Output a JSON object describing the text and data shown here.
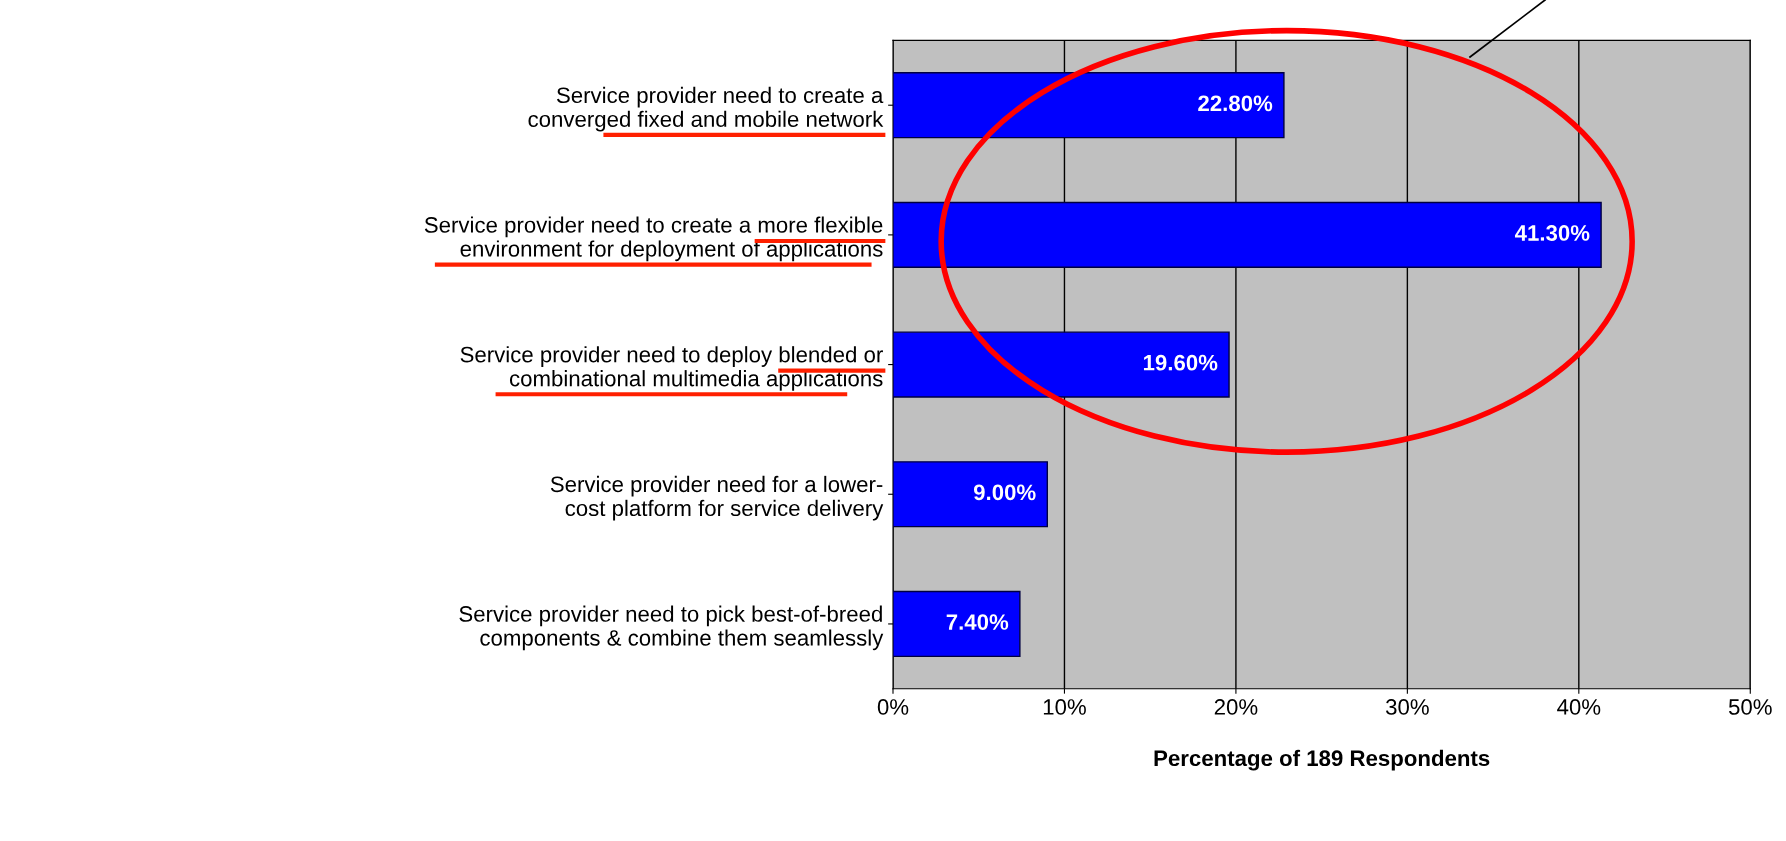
{
  "chart_data": {
    "type": "bar",
    "orientation": "horizontal",
    "categories": [
      "Service provider need to create a\nconverged fixed and mobile network",
      "Service provider need to create a more flexible\nenvironment for deployment of applications",
      "Service provider need to deploy blended or\ncombinational multimedia applications",
      "Service provider need for a lower-\ncost platform for service delivery",
      "Service provider need to pick best-of-breed\ncomponents & combine them seamlessly"
    ],
    "values": [
      22.8,
      41.3,
      19.6,
      9.0,
      7.4
    ],
    "value_labels": [
      "22.80%",
      "41.30%",
      "19.60%",
      "9.00%",
      "7.40%"
    ],
    "color": "#0000ff",
    "xlabel": "Percentage of 189 Respondents",
    "xlim": [
      0,
      50
    ],
    "xticks": [
      {
        "value": 0,
        "label": "0%"
      },
      {
        "value": 10,
        "label": "10%"
      },
      {
        "value": 20,
        "label": "20%"
      },
      {
        "value": 30,
        "label": "30%"
      },
      {
        "value": 40,
        "label": "40%"
      },
      {
        "value": 50,
        "label": "50%"
      }
    ],
    "grid": "x",
    "legend": false
  }
}
